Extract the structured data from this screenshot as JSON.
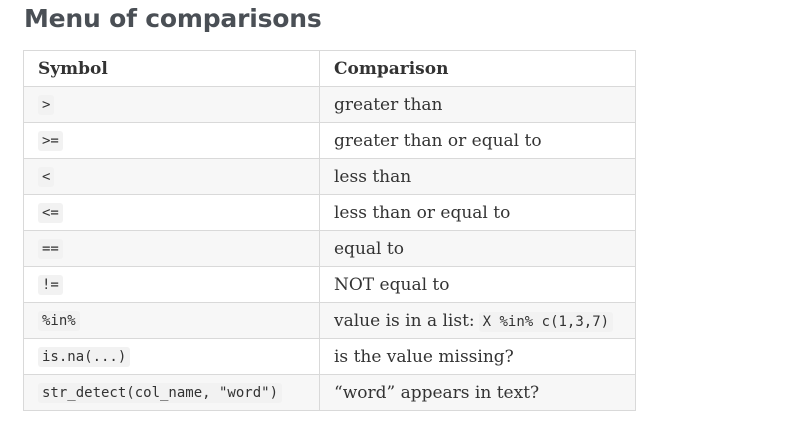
{
  "title": "Menu of comparisons",
  "table": {
    "headers": [
      "Symbol",
      "Comparison"
    ],
    "rows": [
      {
        "symbol": ">",
        "comparison": "greater than"
      },
      {
        "symbol": ">=",
        "comparison": "greater than or equal to"
      },
      {
        "symbol": "<",
        "comparison": "less than"
      },
      {
        "symbol": "<=",
        "comparison": "less than or equal to"
      },
      {
        "symbol": "==",
        "comparison": "equal to"
      },
      {
        "symbol": "!=",
        "comparison": "NOT equal to"
      },
      {
        "symbol": "%in%",
        "comparison": "value is in a list:",
        "comparison_code": "X %in% c(1,3,7)"
      },
      {
        "symbol": "is.na(...)",
        "comparison": "is the value missing?"
      },
      {
        "symbol": "str_detect(col_name, \"word\")",
        "comparison": "“word” appears in text?"
      }
    ]
  }
}
